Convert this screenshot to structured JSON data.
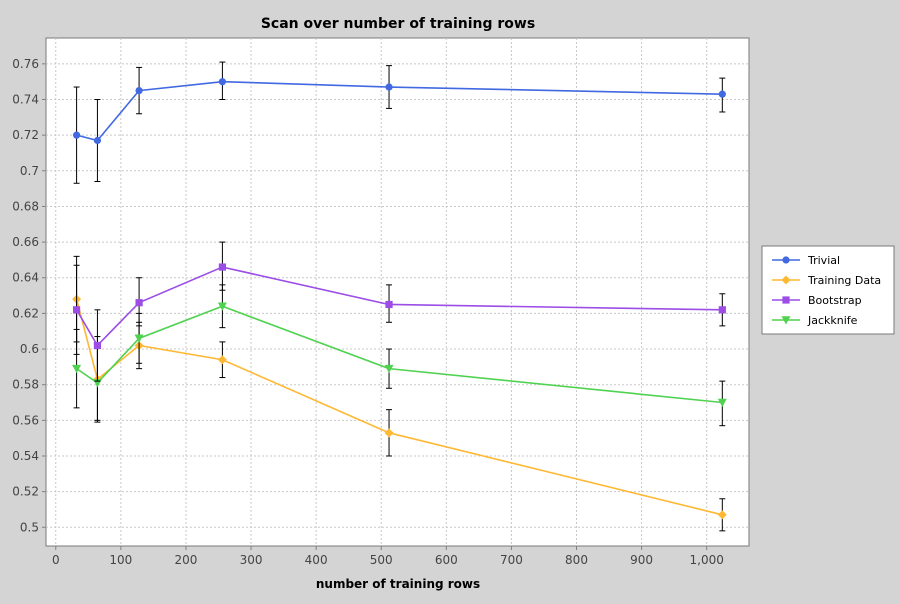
{
  "chart_data": {
    "type": "line",
    "title": "Scan over number of training rows",
    "xlabel": "number of training rows",
    "ylabel": "",
    "xlim": [
      -15,
      1065
    ],
    "ylim": [
      0.4895,
      0.7745
    ],
    "x_ticks": [
      0,
      100,
      200,
      300,
      400,
      500,
      600,
      700,
      800,
      900,
      1000
    ],
    "x_tick_labels": [
      "0",
      "100",
      "200",
      "300",
      "400",
      "500",
      "600",
      "700",
      "800",
      "900",
      "1,000"
    ],
    "y_ticks": [
      0.5,
      0.52,
      0.54,
      0.56,
      0.58,
      0.6,
      0.62,
      0.64,
      0.66,
      0.68,
      0.7,
      0.72,
      0.74,
      0.76
    ],
    "y_tick_labels": [
      "0.5",
      "0.52",
      "0.54",
      "0.56",
      "0.58",
      "0.6",
      "0.62",
      "0.64",
      "0.66",
      "0.68",
      "0.7",
      "0.72",
      "0.74",
      "0.76"
    ],
    "grid": true,
    "legend_position": "right",
    "x": [
      32,
      64,
      128,
      256,
      512,
      1024
    ],
    "series": [
      {
        "name": "Trivial",
        "color": "#4169e1",
        "marker": "circle",
        "values": [
          0.72,
          0.717,
          0.745,
          0.75,
          0.747,
          0.743
        ],
        "error_low": [
          0.693,
          0.694,
          0.732,
          0.74,
          0.735,
          0.733
        ],
        "error_high": [
          0.747,
          0.74,
          0.758,
          0.761,
          0.759,
          0.752
        ]
      },
      {
        "name": "Training Data",
        "color": "#ffb833",
        "marker": "diamond",
        "values": [
          0.628,
          0.583,
          0.602,
          0.594,
          0.553,
          0.507
        ],
        "error_low": [
          0.604,
          0.559,
          0.589,
          0.584,
          0.54,
          0.498
        ],
        "error_high": [
          0.652,
          0.607,
          0.615,
          0.604,
          0.566,
          0.516
        ]
      },
      {
        "name": "Bootstrap",
        "color": "#9b4de6",
        "marker": "square",
        "values": [
          0.622,
          0.602,
          0.626,
          0.646,
          0.625,
          0.622
        ],
        "error_low": [
          0.597,
          0.582,
          0.613,
          0.633,
          0.615,
          0.613
        ],
        "error_high": [
          0.647,
          0.622,
          0.64,
          0.66,
          0.636,
          0.631
        ]
      },
      {
        "name": "Jackknife",
        "color": "#4fd24f",
        "marker": "triangle-down",
        "values": [
          0.589,
          0.581,
          0.606,
          0.624,
          0.589,
          0.57
        ],
        "error_low": [
          0.567,
          0.56,
          0.592,
          0.612,
          0.578,
          0.557
        ],
        "error_high": [
          0.611,
          0.602,
          0.62,
          0.636,
          0.6,
          0.582
        ]
      }
    ]
  }
}
